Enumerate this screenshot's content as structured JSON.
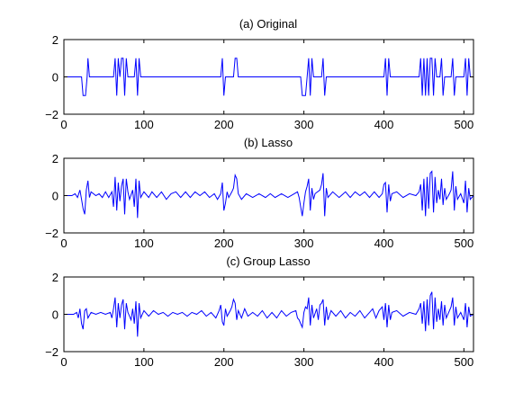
{
  "chart_data": [
    {
      "type": "line",
      "title": "(a) Original",
      "xlim": [
        0,
        512
      ],
      "ylim": [
        -2,
        2
      ],
      "xticks": [
        "0",
        "100",
        "200",
        "300",
        "400",
        "500"
      ],
      "yticks": [
        "2",
        "0",
        "−2"
      ],
      "grid": false,
      "series_color": "#0000ff",
      "points": [
        [
          0,
          0
        ],
        [
          22,
          0
        ],
        [
          24,
          -1
        ],
        [
          27,
          -1
        ],
        [
          29,
          0
        ],
        [
          30,
          1
        ],
        [
          32,
          0
        ],
        [
          62,
          0
        ],
        [
          64,
          1
        ],
        [
          66,
          -1
        ],
        [
          68,
          1
        ],
        [
          70,
          0
        ],
        [
          72,
          1
        ],
        [
          74,
          1
        ],
        [
          76,
          -1
        ],
        [
          78,
          1
        ],
        [
          80,
          0
        ],
        [
          88,
          0
        ],
        [
          90,
          1
        ],
        [
          92,
          -1
        ],
        [
          94,
          1
        ],
        [
          96,
          0
        ],
        [
          196,
          0
        ],
        [
          198,
          1
        ],
        [
          200,
          -1
        ],
        [
          202,
          0
        ],
        [
          212,
          0
        ],
        [
          214,
          1
        ],
        [
          216,
          1
        ],
        [
          218,
          0
        ],
        [
          296,
          0
        ],
        [
          298,
          -1
        ],
        [
          302,
          -1
        ],
        [
          304,
          0
        ],
        [
          306,
          1
        ],
        [
          308,
          -1
        ],
        [
          310,
          1
        ],
        [
          312,
          0
        ],
        [
          322,
          0
        ],
        [
          324,
          1
        ],
        [
          326,
          -1
        ],
        [
          328,
          0
        ],
        [
          400,
          0
        ],
        [
          402,
          1
        ],
        [
          404,
          -1
        ],
        [
          406,
          1
        ],
        [
          408,
          0
        ],
        [
          444,
          0
        ],
        [
          446,
          1
        ],
        [
          448,
          -1
        ],
        [
          450,
          1
        ],
        [
          452,
          -1
        ],
        [
          454,
          1
        ],
        [
          456,
          -1
        ],
        [
          458,
          1
        ],
        [
          460,
          1
        ],
        [
          462,
          -1
        ],
        [
          464,
          1
        ],
        [
          466,
          0
        ],
        [
          470,
          0
        ],
        [
          472,
          1
        ],
        [
          474,
          -1
        ],
        [
          476,
          0
        ],
        [
          484,
          0
        ],
        [
          486,
          1
        ],
        [
          488,
          -1
        ],
        [
          490,
          0
        ],
        [
          500,
          0
        ],
        [
          502,
          1
        ],
        [
          504,
          -1
        ],
        [
          506,
          1
        ],
        [
          508,
          0
        ],
        [
          512,
          0
        ]
      ]
    },
    {
      "type": "line",
      "title": "(b) Lasso",
      "xlim": [
        0,
        512
      ],
      "ylim": [
        -2,
        2
      ],
      "xticks": [
        "0",
        "100",
        "200",
        "300",
        "400",
        "500"
      ],
      "yticks": [
        "2",
        "0",
        "−2"
      ],
      "grid": false,
      "series_color": "#0000ff",
      "points": [
        [
          0,
          0
        ],
        [
          10,
          0
        ],
        [
          14,
          0.1
        ],
        [
          17,
          -0.1
        ],
        [
          20,
          0.3
        ],
        [
          22,
          -0.2
        ],
        [
          24,
          -0.7
        ],
        [
          26,
          -1
        ],
        [
          28,
          0.3
        ],
        [
          30,
          0.8
        ],
        [
          32,
          -0.1
        ],
        [
          34,
          0.2
        ],
        [
          40,
          0
        ],
        [
          44,
          0.1
        ],
        [
          48,
          -0.1
        ],
        [
          52,
          0.2
        ],
        [
          56,
          -0.1
        ],
        [
          60,
          0.2
        ],
        [
          62,
          -0.6
        ],
        [
          64,
          1.0
        ],
        [
          66,
          -0.8
        ],
        [
          68,
          0.7
        ],
        [
          70,
          -0.3
        ],
        [
          72,
          0.5
        ],
        [
          74,
          0.9
        ],
        [
          76,
          -1.0
        ],
        [
          78,
          0.9
        ],
        [
          80,
          0.2
        ],
        [
          82,
          -0.2
        ],
        [
          86,
          0.3
        ],
        [
          88,
          -0.6
        ],
        [
          90,
          0.9
        ],
        [
          92,
          -1.2
        ],
        [
          94,
          0.8
        ],
        [
          96,
          -0.1
        ],
        [
          100,
          0.2
        ],
        [
          106,
          -0.1
        ],
        [
          110,
          0.2
        ],
        [
          116,
          -0.1
        ],
        [
          122,
          0.2
        ],
        [
          128,
          -0.2
        ],
        [
          134,
          0.1
        ],
        [
          140,
          0.2
        ],
        [
          146,
          -0.1
        ],
        [
          152,
          0.2
        ],
        [
          158,
          -0.1
        ],
        [
          164,
          0.2
        ],
        [
          170,
          0
        ],
        [
          176,
          0.2
        ],
        [
          182,
          -0.1
        ],
        [
          188,
          0.1
        ],
        [
          192,
          -0.2
        ],
        [
          196,
          0.1
        ],
        [
          198,
          0.7
        ],
        [
          200,
          -0.8
        ],
        [
          202,
          -0.4
        ],
        [
          204,
          0.2
        ],
        [
          206,
          -0.1
        ],
        [
          210,
          0.2
        ],
        [
          212,
          0.4
        ],
        [
          214,
          1.1
        ],
        [
          216,
          0.9
        ],
        [
          218,
          0.1
        ],
        [
          222,
          -0.2
        ],
        [
          228,
          0.1
        ],
        [
          236,
          -0.1
        ],
        [
          244,
          0.1
        ],
        [
          252,
          -0.1
        ],
        [
          258,
          0.1
        ],
        [
          264,
          -0.1
        ],
        [
          272,
          0.1
        ],
        [
          280,
          -0.1
        ],
        [
          288,
          0.1
        ],
        [
          292,
          0.2
        ],
        [
          294,
          -0.1
        ],
        [
          296,
          -0.6
        ],
        [
          298,
          -1.1
        ],
        [
          300,
          -0.4
        ],
        [
          302,
          0.2
        ],
        [
          304,
          0.5
        ],
        [
          306,
          0.9
        ],
        [
          308,
          -0.8
        ],
        [
          310,
          0.4
        ],
        [
          312,
          -0.2
        ],
        [
          314,
          0.1
        ],
        [
          320,
          0.3
        ],
        [
          322,
          0.6
        ],
        [
          324,
          1.2
        ],
        [
          326,
          -1.1
        ],
        [
          328,
          0.4
        ],
        [
          330,
          -0.1
        ],
        [
          336,
          0.2
        ],
        [
          344,
          -0.1
        ],
        [
          352,
          0.2
        ],
        [
          358,
          -0.1
        ],
        [
          364,
          0.2
        ],
        [
          370,
          0
        ],
        [
          376,
          0.2
        ],
        [
          382,
          -0.1
        ],
        [
          388,
          0.2
        ],
        [
          394,
          -0.1
        ],
        [
          398,
          0.1
        ],
        [
          400,
          0.6
        ],
        [
          402,
          0.7
        ],
        [
          404,
          -0.9
        ],
        [
          406,
          0.6
        ],
        [
          408,
          -0.3
        ],
        [
          410,
          0.1
        ],
        [
          416,
          0.2
        ],
        [
          424,
          -0.1
        ],
        [
          432,
          0.1
        ],
        [
          440,
          0
        ],
        [
          444,
          0.2
        ],
        [
          446,
          0.6
        ],
        [
          448,
          -0.8
        ],
        [
          450,
          0.9
        ],
        [
          452,
          -1.1
        ],
        [
          454,
          1.0
        ],
        [
          456,
          -0.7
        ],
        [
          458,
          1.2
        ],
        [
          460,
          1.3
        ],
        [
          462,
          -0.9
        ],
        [
          464,
          1.0
        ],
        [
          466,
          -0.4
        ],
        [
          468,
          0.3
        ],
        [
          470,
          -0.2
        ],
        [
          472,
          0.9
        ],
        [
          474,
          -0.5
        ],
        [
          476,
          0.4
        ],
        [
          478,
          -0.2
        ],
        [
          482,
          0.1
        ],
        [
          484,
          0.3
        ],
        [
          486,
          1.3
        ],
        [
          488,
          -0.8
        ],
        [
          490,
          0.5
        ],
        [
          492,
          -0.2
        ],
        [
          496,
          0.1
        ],
        [
          500,
          -0.4
        ],
        [
          502,
          0.8
        ],
        [
          504,
          -0.9
        ],
        [
          506,
          0.4
        ],
        [
          508,
          -0.2
        ],
        [
          512,
          0
        ]
      ]
    },
    {
      "type": "line",
      "title": "(c) Group Lasso",
      "xlim": [
        0,
        512
      ],
      "ylim": [
        -2,
        2
      ],
      "xticks": [
        "0",
        "100",
        "200",
        "300",
        "400",
        "500"
      ],
      "yticks": [
        "2",
        "0",
        "−2"
      ],
      "grid": false,
      "series_color": "#0000ff",
      "points": [
        [
          0,
          0
        ],
        [
          12,
          0
        ],
        [
          16,
          0.1
        ],
        [
          18,
          -0.2
        ],
        [
          20,
          0.3
        ],
        [
          22,
          -0.5
        ],
        [
          24,
          -0.8
        ],
        [
          26,
          0.2
        ],
        [
          28,
          0.3
        ],
        [
          30,
          -0.2
        ],
        [
          34,
          0.1
        ],
        [
          40,
          0
        ],
        [
          46,
          0.1
        ],
        [
          52,
          0
        ],
        [
          58,
          0.1
        ],
        [
          60,
          -0.2
        ],
        [
          62,
          0.3
        ],
        [
          64,
          0.9
        ],
        [
          66,
          -0.7
        ],
        [
          68,
          0.6
        ],
        [
          70,
          -0.2
        ],
        [
          72,
          0.5
        ],
        [
          74,
          0.8
        ],
        [
          76,
          -0.8
        ],
        [
          78,
          0.6
        ],
        [
          80,
          0.1
        ],
        [
          84,
          -0.3
        ],
        [
          86,
          0.3
        ],
        [
          88,
          -0.5
        ],
        [
          90,
          0.7
        ],
        [
          92,
          -1.2
        ],
        [
          94,
          0.6
        ],
        [
          96,
          -0.2
        ],
        [
          100,
          0.2
        ],
        [
          106,
          -0.1
        ],
        [
          112,
          0.2
        ],
        [
          118,
          0
        ],
        [
          124,
          0.1
        ],
        [
          130,
          -0.1
        ],
        [
          136,
          0.1
        ],
        [
          142,
          0
        ],
        [
          148,
          0.1
        ],
        [
          154,
          -0.1
        ],
        [
          160,
          0.1
        ],
        [
          166,
          0
        ],
        [
          172,
          0.2
        ],
        [
          178,
          -0.1
        ],
        [
          184,
          0.1
        ],
        [
          190,
          -0.2
        ],
        [
          194,
          0.2
        ],
        [
          196,
          0.5
        ],
        [
          198,
          -0.4
        ],
        [
          200,
          -0.6
        ],
        [
          202,
          0.3
        ],
        [
          204,
          -0.1
        ],
        [
          208,
          0.2
        ],
        [
          210,
          0.4
        ],
        [
          212,
          0.8
        ],
        [
          214,
          0.6
        ],
        [
          216,
          -0.3
        ],
        [
          218,
          0.2
        ],
        [
          222,
          -0.2
        ],
        [
          226,
          0.3
        ],
        [
          230,
          -0.1
        ],
        [
          236,
          0.1
        ],
        [
          242,
          -0.1
        ],
        [
          248,
          0.2
        ],
        [
          254,
          -0.2
        ],
        [
          260,
          0.1
        ],
        [
          266,
          -0.2
        ],
        [
          272,
          0.2
        ],
        [
          278,
          -0.1
        ],
        [
          284,
          0.1
        ],
        [
          290,
          0.2
        ],
        [
          292,
          -0.2
        ],
        [
          294,
          -0.3
        ],
        [
          296,
          -0.5
        ],
        [
          298,
          -0.7
        ],
        [
          300,
          0.1
        ],
        [
          302,
          0.4
        ],
        [
          304,
          0.3
        ],
        [
          306,
          0.9
        ],
        [
          308,
          -0.6
        ],
        [
          310,
          0.5
        ],
        [
          312,
          -0.2
        ],
        [
          316,
          0.3
        ],
        [
          318,
          -0.3
        ],
        [
          320,
          0.5
        ],
        [
          322,
          0.6
        ],
        [
          324,
          0.8
        ],
        [
          326,
          -0.6
        ],
        [
          328,
          0.4
        ],
        [
          330,
          -0.3
        ],
        [
          334,
          0.2
        ],
        [
          340,
          -0.1
        ],
        [
          346,
          0.2
        ],
        [
          352,
          -0.2
        ],
        [
          358,
          0.1
        ],
        [
          364,
          -0.1
        ],
        [
          370,
          0.2
        ],
        [
          376,
          -0.2
        ],
        [
          382,
          0.1
        ],
        [
          386,
          0.3
        ],
        [
          390,
          -0.2
        ],
        [
          394,
          0.2
        ],
        [
          398,
          0.4
        ],
        [
          400,
          -0.3
        ],
        [
          402,
          0.6
        ],
        [
          404,
          -0.7
        ],
        [
          406,
          0.5
        ],
        [
          408,
          -0.3
        ],
        [
          410,
          0.1
        ],
        [
          416,
          0.2
        ],
        [
          424,
          -0.1
        ],
        [
          432,
          0.1
        ],
        [
          440,
          0
        ],
        [
          444,
          0.3
        ],
        [
          446,
          0.6
        ],
        [
          448,
          -0.5
        ],
        [
          450,
          0.7
        ],
        [
          452,
          -0.9
        ],
        [
          454,
          0.8
        ],
        [
          456,
          -0.6
        ],
        [
          458,
          1.0
        ],
        [
          460,
          1.2
        ],
        [
          462,
          -0.8
        ],
        [
          464,
          0.9
        ],
        [
          466,
          -0.4
        ],
        [
          468,
          0.3
        ],
        [
          470,
          -0.3
        ],
        [
          472,
          0.7
        ],
        [
          474,
          -0.6
        ],
        [
          476,
          0.5
        ],
        [
          478,
          -0.2
        ],
        [
          482,
          0.2
        ],
        [
          484,
          0.4
        ],
        [
          486,
          0.9
        ],
        [
          488,
          -0.6
        ],
        [
          490,
          0.4
        ],
        [
          492,
          -0.2
        ],
        [
          496,
          0.1
        ],
        [
          500,
          -0.3
        ],
        [
          502,
          0.6
        ],
        [
          504,
          -0.7
        ],
        [
          506,
          0.4
        ],
        [
          508,
          -0.1
        ],
        [
          512,
          0
        ]
      ]
    }
  ]
}
